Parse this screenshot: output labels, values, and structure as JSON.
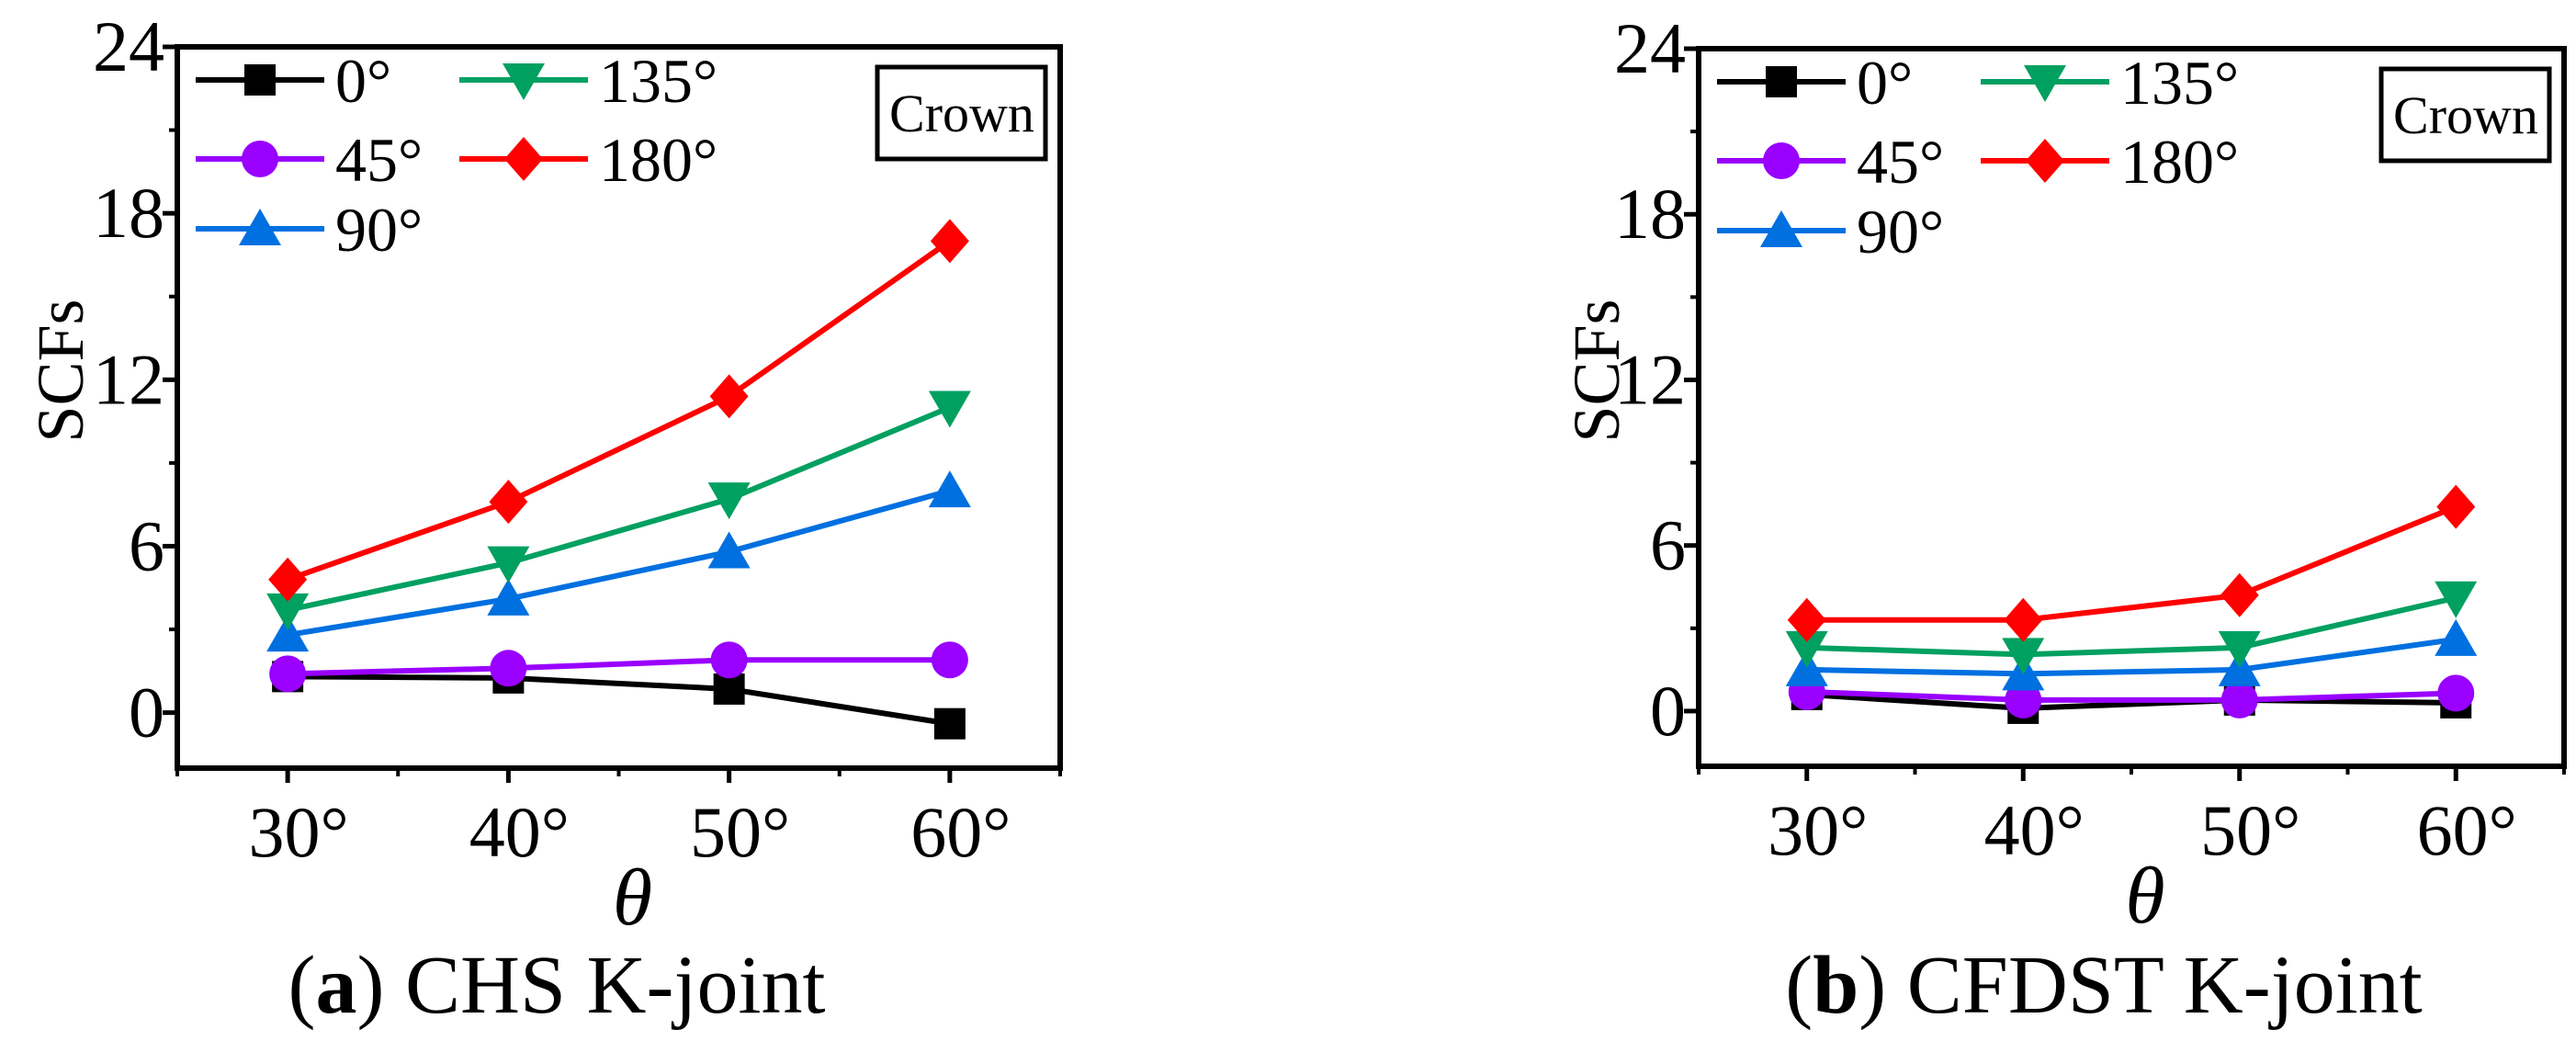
{
  "chart_data": [
    {
      "type": "line",
      "caption_letter": "a",
      "caption_text": " CHS K-joint",
      "xlabel": "θ",
      "ylabel": "SCFs",
      "annotation": "Crown",
      "x": [
        30,
        40,
        50,
        60
      ],
      "x_tick_labels": [
        "30°",
        "40°",
        "50°",
        "60°"
      ],
      "xlim": [
        25,
        65
      ],
      "ylim": [
        -2,
        24
      ],
      "y_ticks": [
        0,
        6,
        12,
        18,
        24
      ],
      "y_tick_labels": [
        "0",
        "6",
        "12",
        "18",
        "24"
      ],
      "grid": false,
      "legend_position": "top-left",
      "series": [
        {
          "name": "0°",
          "color": "#000000",
          "marker": "square",
          "values": [
            1.3,
            1.25,
            0.85,
            -0.4
          ]
        },
        {
          "name": "45°",
          "color": "#9900ff",
          "marker": "circle",
          "values": [
            1.4,
            1.6,
            1.9,
            1.9
          ]
        },
        {
          "name": "90°",
          "color": "#0070e0",
          "marker": "triangle-up",
          "values": [
            2.8,
            4.1,
            5.8,
            8.0
          ]
        },
        {
          "name": "135°",
          "color": "#00a060",
          "marker": "triangle-down",
          "values": [
            3.7,
            5.4,
            7.7,
            11.0
          ]
        },
        {
          "name": "180°",
          "color": "#ff0000",
          "marker": "diamond",
          "values": [
            4.8,
            7.6,
            11.4,
            17.0
          ]
        }
      ]
    },
    {
      "type": "line",
      "caption_letter": "b",
      "caption_text": " CFDST K-joint",
      "xlabel": "θ",
      "ylabel": "SCFs",
      "annotation": "Crown",
      "x": [
        30,
        40,
        50,
        60
      ],
      "x_tick_labels": [
        "30°",
        "40°",
        "50°",
        "60°"
      ],
      "xlim": [
        25,
        65
      ],
      "ylim": [
        -2,
        24
      ],
      "y_ticks": [
        0,
        6,
        12,
        18,
        24
      ],
      "y_tick_labels": [
        "0",
        "6",
        "12",
        "18",
        "24"
      ],
      "grid": false,
      "legend_position": "top-left",
      "series": [
        {
          "name": "0°",
          "color": "#000000",
          "marker": "square",
          "values": [
            0.6,
            0.1,
            0.4,
            0.3
          ]
        },
        {
          "name": "45°",
          "color": "#9900ff",
          "marker": "circle",
          "values": [
            0.7,
            0.4,
            0.4,
            0.65
          ]
        },
        {
          "name": "90°",
          "color": "#0070e0",
          "marker": "triangle-up",
          "values": [
            1.5,
            1.35,
            1.5,
            2.6
          ]
        },
        {
          "name": "135°",
          "color": "#00a060",
          "marker": "triangle-down",
          "values": [
            2.3,
            2.05,
            2.3,
            4.1
          ]
        },
        {
          "name": "180°",
          "color": "#ff0000",
          "marker": "diamond",
          "values": [
            3.3,
            3.3,
            4.2,
            7.4
          ]
        }
      ]
    }
  ]
}
